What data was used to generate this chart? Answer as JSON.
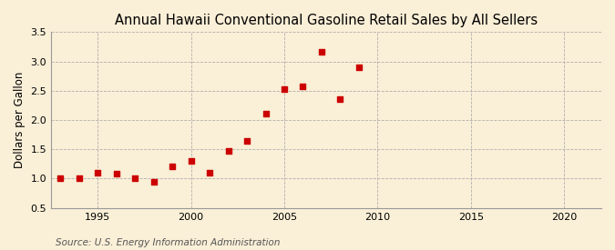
{
  "title": "Annual Hawaii Conventional Gasoline Retail Sales by All Sellers",
  "ylabel": "Dollars per Gallon",
  "source": "Source: U.S. Energy Information Administration",
  "background_color": "#faefd7",
  "marker_color": "#cc0000",
  "years": [
    1993,
    1994,
    1995,
    1996,
    1997,
    1998,
    1999,
    2000,
    2001,
    2002,
    2003,
    2004,
    2005,
    2006,
    2007,
    2008,
    2009
  ],
  "values": [
    1.0,
    1.0,
    1.1,
    1.08,
    1.0,
    0.94,
    1.21,
    1.3,
    1.1,
    1.47,
    1.65,
    2.11,
    2.53,
    2.58,
    3.17,
    2.36,
    2.9
  ],
  "xlim": [
    1992.5,
    2022
  ],
  "ylim": [
    0.5,
    3.5
  ],
  "xticks": [
    1995,
    2000,
    2005,
    2010,
    2015,
    2020
  ],
  "yticks": [
    0.5,
    1.0,
    1.5,
    2.0,
    2.5,
    3.0,
    3.5
  ],
  "title_fontsize": 10.5,
  "label_fontsize": 8.5,
  "tick_fontsize": 8,
  "source_fontsize": 7.5
}
